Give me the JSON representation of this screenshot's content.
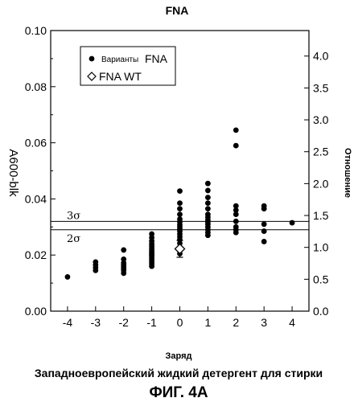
{
  "chart_data": {
    "type": "scatter",
    "title": "FNA",
    "xlabel": "Заряд",
    "ylabel": "A600-blk",
    "y2label": "Отношение",
    "subtitle": "Западноевропейский жидкий детергент для стирки",
    "figure_label": "ФИГ. 4А",
    "xlim": [
      -4.6,
      4.6
    ],
    "ylim": [
      0.0,
      0.1
    ],
    "y2lim": [
      0.0,
      4.4
    ],
    "x_ticks": [
      "-4",
      "-3",
      "-2",
      "-1",
      "0",
      "1",
      "2",
      "3",
      "4"
    ],
    "y_ticks": [
      "0.00",
      "0.02",
      "0.04",
      "0.06",
      "0.08",
      "0.10"
    ],
    "y2_ticks": [
      "0.0",
      "0.5",
      "1.0",
      "1.5",
      "2.0",
      "2.5",
      "3.0",
      "3.5",
      "4.0"
    ],
    "grid": false,
    "legend_position": "top-left",
    "legend": [
      {
        "label_small": "Варианты",
        "label": "FNA",
        "marker": "filled-circle"
      },
      {
        "label": "FNA WT",
        "marker": "open-diamond"
      }
    ],
    "reference_lines": [
      {
        "label": "3σ",
        "y": 0.032
      },
      {
        "label": "2σ",
        "y": 0.029
      }
    ],
    "series": [
      {
        "name": "Варианты FNA",
        "marker": "filled-circle",
        "points": [
          [
            -4,
            0.0122
          ],
          [
            -3,
            0.0145
          ],
          [
            -3,
            0.0155
          ],
          [
            -3,
            0.0165
          ],
          [
            -3,
            0.0175
          ],
          [
            -2,
            0.0135
          ],
          [
            -2,
            0.0145
          ],
          [
            -2,
            0.0152
          ],
          [
            -2,
            0.0158
          ],
          [
            -2,
            0.0165
          ],
          [
            -2,
            0.0172
          ],
          [
            -2,
            0.0185
          ],
          [
            -2,
            0.0218
          ],
          [
            -1,
            0.016
          ],
          [
            -1,
            0.0168
          ],
          [
            -1,
            0.0175
          ],
          [
            -1,
            0.0182
          ],
          [
            -1,
            0.0188
          ],
          [
            -1,
            0.0195
          ],
          [
            -1,
            0.02
          ],
          [
            -1,
            0.0206
          ],
          [
            -1,
            0.0212
          ],
          [
            -1,
            0.0218
          ],
          [
            -1,
            0.0225
          ],
          [
            -1,
            0.0232
          ],
          [
            -1,
            0.024
          ],
          [
            -1,
            0.025
          ],
          [
            -1,
            0.0262
          ],
          [
            -1,
            0.0275
          ],
          [
            0,
            0.0205
          ],
          [
            0,
            0.0225
          ],
          [
            0,
            0.0242
          ],
          [
            0,
            0.0255
          ],
          [
            0,
            0.0265
          ],
          [
            0,
            0.0275
          ],
          [
            0,
            0.0285
          ],
          [
            0,
            0.0292
          ],
          [
            0,
            0.03
          ],
          [
            0,
            0.0308
          ],
          [
            0,
            0.0318
          ],
          [
            0,
            0.0328
          ],
          [
            0,
            0.0345
          ],
          [
            0,
            0.0365
          ],
          [
            0,
            0.0385
          ],
          [
            0,
            0.0428
          ],
          [
            1,
            0.027
          ],
          [
            1,
            0.028
          ],
          [
            1,
            0.029
          ],
          [
            1,
            0.03
          ],
          [
            1,
            0.031
          ],
          [
            1,
            0.0318
          ],
          [
            1,
            0.0325
          ],
          [
            1,
            0.0335
          ],
          [
            1,
            0.0345
          ],
          [
            1,
            0.0365
          ],
          [
            1,
            0.0385
          ],
          [
            1,
            0.0405
          ],
          [
            1,
            0.043
          ],
          [
            1,
            0.0455
          ],
          [
            2,
            0.028
          ],
          [
            2,
            0.029
          ],
          [
            2,
            0.03
          ],
          [
            2,
            0.032
          ],
          [
            2,
            0.0345
          ],
          [
            2,
            0.036
          ],
          [
            2,
            0.0375
          ],
          [
            2,
            0.059
          ],
          [
            2,
            0.0645
          ],
          [
            3,
            0.0248
          ],
          [
            3,
            0.0285
          ],
          [
            3,
            0.031
          ],
          [
            3,
            0.0365
          ],
          [
            3,
            0.0375
          ],
          [
            4,
            0.0315
          ]
        ]
      },
      {
        "name": "FNA WT",
        "marker": "open-diamond",
        "points": [
          [
            0,
            0.0222
          ]
        ],
        "error": [
          0.003
        ]
      }
    ]
  }
}
